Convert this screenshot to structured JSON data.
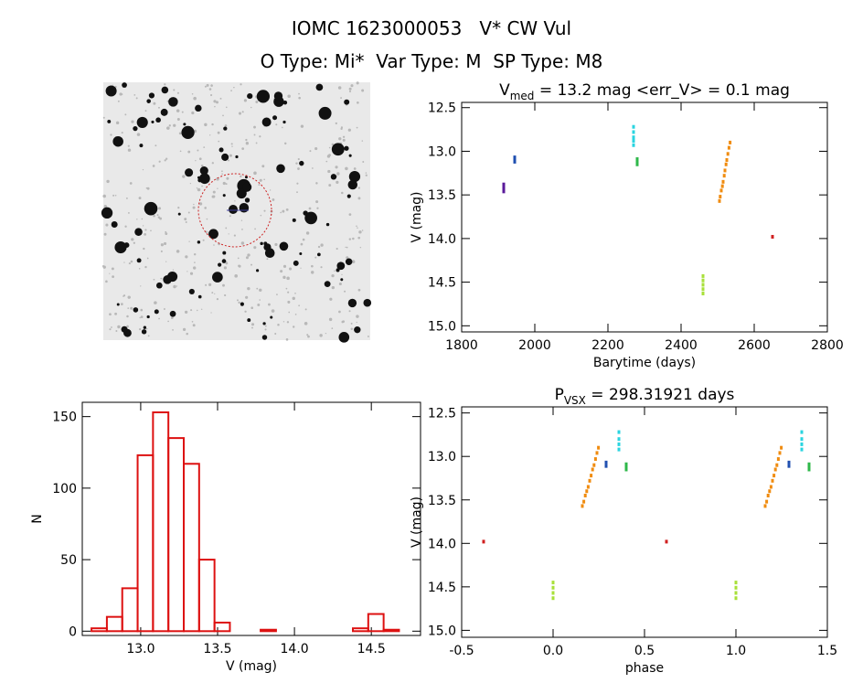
{
  "title": "IOMC 1623000053   V* CW Vul",
  "subtitle": "O Type: Mi*  Var Type: M  SP Type: M8",
  "chart_data": [
    {
      "type": "scatter",
      "title": [
        "V",
        "med",
        " = 13.2 mag <err_V> = 0.1 mag"
      ],
      "x_label": "Barytime (days)",
      "y_label": "V (mag)",
      "xlim": [
        1800,
        2800
      ],
      "xticks": [
        1800,
        2000,
        2200,
        2400,
        2600,
        2800
      ],
      "ylim": [
        15.07,
        12.44
      ],
      "yticks": [
        12.5,
        {
          "value": 13.0,
          "label": "13.0"
        },
        13.5,
        {
          "value": 14.0,
          "label": "14.0"
        },
        14.5,
        {
          "value": 15.0,
          "label": "15.0"
        }
      ],
      "series": [
        {
          "color": "#5a1a9a",
          "x": [
            1915,
            1915,
            1915
          ],
          "values": [
            13.38,
            13.42,
            13.46
          ]
        },
        {
          "color": "#1f4fb0",
          "x": [
            1945,
            1945,
            1945
          ],
          "values": [
            13.07,
            13.1,
            13.12
          ]
        },
        {
          "color": "#2ad4e0",
          "x": [
            2270,
            2270,
            2270,
            2270,
            2270
          ],
          "values": [
            12.72,
            12.78,
            12.84,
            12.88,
            12.93
          ]
        },
        {
          "color": "#2fb84a",
          "x": [
            2280,
            2280,
            2280
          ],
          "values": [
            13.09,
            13.12,
            13.15
          ]
        },
        {
          "color": "#a8e03a",
          "x": [
            2460,
            2460,
            2460,
            2460,
            2460
          ],
          "values": [
            14.43,
            14.48,
            14.53,
            14.58,
            14.63
          ]
        },
        {
          "color": "#f08c10",
          "x": [
            2505,
            2507,
            2510,
            2513,
            2515,
            2518,
            2520,
            2523,
            2525,
            2528,
            2531,
            2534
          ],
          "values": [
            13.57,
            13.52,
            13.45,
            13.4,
            13.35,
            13.28,
            13.22,
            13.15,
            13.1,
            13.03,
            12.96,
            12.9
          ]
        },
        {
          "color": "#d02020",
          "x": [
            2650
          ],
          "values": [
            13.98
          ]
        }
      ]
    },
    {
      "type": "histogram",
      "x_label": "V (mag)",
      "y_label": "N",
      "color": "#dd1111",
      "xlim": [
        12.62,
        14.82
      ],
      "xticks": [
        {
          "value": 13.0,
          "label": "13.0"
        },
        13.5,
        {
          "value": 14.0,
          "label": "14.0"
        },
        14.5
      ],
      "ylim": [
        -3,
        160
      ],
      "yticks": [
        0,
        50,
        100,
        150
      ],
      "bins": [
        12.68,
        12.78,
        12.88,
        12.98,
        13.08,
        13.18,
        13.28,
        13.38,
        13.48,
        13.58,
        13.68,
        13.78,
        13.88,
        13.98,
        14.08,
        14.18,
        14.28,
        14.38,
        14.48,
        14.58,
        14.68,
        14.78
      ],
      "counts": [
        2,
        10,
        30,
        123,
        153,
        135,
        117,
        50,
        6,
        0,
        0,
        1,
        0,
        0,
        0,
        0,
        0,
        2,
        12,
        1,
        0
      ]
    },
    {
      "type": "scatter",
      "title": [
        "P",
        "VSX",
        " = 298.31921 days"
      ],
      "x_label": "phase",
      "y_label": "V (mag)",
      "xlim": [
        -0.5,
        1.5
      ],
      "xticks": [
        -0.5,
        {
          "value": 0.0,
          "label": "0.0"
        },
        0.5,
        {
          "value": 1.0,
          "label": "1.0"
        },
        1.5
      ],
      "ylim": [
        15.08,
        12.43
      ],
      "yticks": [
        12.5,
        {
          "value": 13.0,
          "label": "13.0"
        },
        13.5,
        {
          "value": 14.0,
          "label": "14.0"
        },
        14.5,
        {
          "value": 15.0,
          "label": "15.0"
        }
      ],
      "series": [
        {
          "color": "#1f4fb0",
          "x": [
            0.29,
            0.29,
            1.29,
            1.29
          ],
          "values": [
            13.07,
            13.11,
            13.07,
            13.11
          ]
        },
        {
          "color": "#2ad4e0",
          "x": [
            0.36,
            0.36,
            0.36,
            0.36,
            1.36,
            1.36,
            1.36,
            1.36
          ],
          "values": [
            12.72,
            12.8,
            12.86,
            12.92,
            12.72,
            12.8,
            12.86,
            12.92
          ]
        },
        {
          "color": "#2fb84a",
          "x": [
            0.4,
            0.4,
            0.4,
            1.4,
            1.4,
            1.4
          ],
          "values": [
            13.09,
            13.12,
            13.15,
            13.09,
            13.12,
            13.15
          ]
        },
        {
          "color": "#a8e03a",
          "x": [
            0.0,
            0.0,
            0.0,
            0.0,
            1.0,
            1.0,
            1.0,
            1.0
          ],
          "values": [
            14.45,
            14.51,
            14.57,
            14.63,
            14.45,
            14.51,
            14.57,
            14.63
          ]
        },
        {
          "color": "#f08c10",
          "x": [
            0.16,
            0.168,
            0.176,
            0.184,
            0.192,
            0.2,
            0.208,
            0.216,
            0.224,
            0.232,
            0.24,
            0.248,
            1.16,
            1.168,
            1.176,
            1.184,
            1.192,
            1.2,
            1.208,
            1.216,
            1.224,
            1.232,
            1.24,
            1.248
          ],
          "values": [
            13.57,
            13.52,
            13.45,
            13.4,
            13.35,
            13.28,
            13.22,
            13.15,
            13.1,
            13.03,
            12.96,
            12.9,
            13.57,
            13.52,
            13.45,
            13.4,
            13.35,
            13.28,
            13.22,
            13.15,
            13.1,
            13.03,
            12.96,
            12.9
          ]
        },
        {
          "color": "#d02020",
          "x": [
            -0.38,
            0.62
          ],
          "values": [
            13.98,
            13.98
          ]
        }
      ]
    }
  ]
}
